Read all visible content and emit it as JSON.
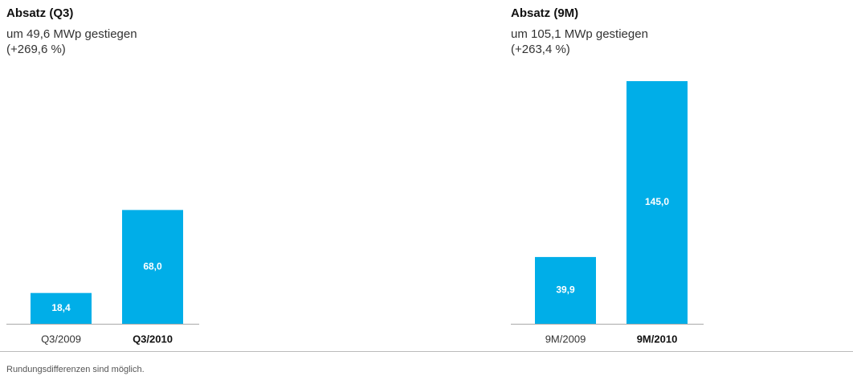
{
  "chart_data": [
    {
      "type": "bar",
      "title": "Absatz (Q3)",
      "subtitle": [
        "um 49,6 MWp gestiegen",
        "(+269,6 %)"
      ],
      "categories": [
        "Q3/2009",
        "Q3/2010"
      ],
      "values": [
        18.4,
        68.0
      ],
      "value_labels": [
        "18,4",
        "68,0"
      ],
      "color": "#00aee8"
    },
    {
      "type": "bar",
      "title": "Absatz (9M)",
      "subtitle": [
        "um 105,1 MWp gestiegen",
        "(+263,4 %)"
      ],
      "categories": [
        "9M/2009",
        "9M/2010"
      ],
      "values": [
        39.9,
        145.0
      ],
      "value_labels": [
        "39,9",
        "145,0"
      ],
      "color": "#00aee8"
    }
  ],
  "footnote": "Rundungsdifferenzen sind möglich."
}
